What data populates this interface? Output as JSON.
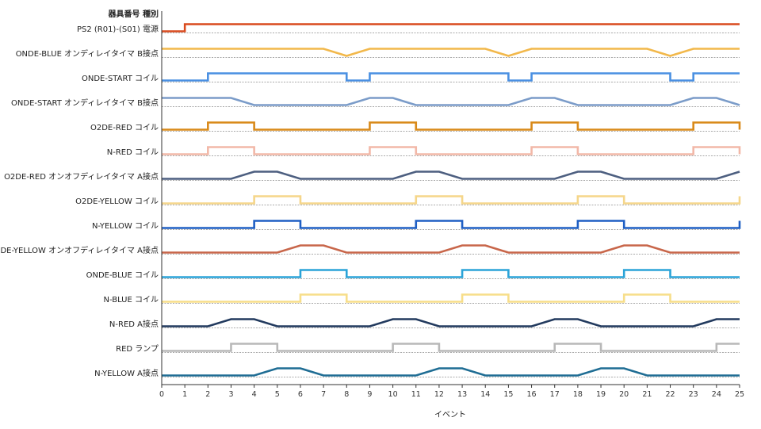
{
  "chart_data": {
    "type": "line",
    "header": "器具番号  種別",
    "xlabel": "イベント",
    "xlim": [
      0,
      25
    ],
    "xticks": [
      0,
      1,
      2,
      3,
      4,
      5,
      6,
      7,
      8,
      9,
      10,
      11,
      12,
      13,
      14,
      15,
      16,
      17,
      18,
      19,
      20,
      21,
      22,
      23,
      24,
      25
    ],
    "series": [
      {
        "name": "PS2 (R01)-(S01)  電源",
        "color": "#d94a1e",
        "step": true,
        "points": [
          [
            0,
            0
          ],
          [
            1,
            0
          ],
          [
            1,
            1
          ],
          [
            25,
            1
          ]
        ]
      },
      {
        "name": "ONDE-BLUE  オンディレイタイマ B接点",
        "color": "#f2b84b",
        "step": false,
        "points": [
          [
            0,
            1
          ],
          [
            7,
            1
          ],
          [
            8,
            0
          ],
          [
            9,
            1
          ],
          [
            14,
            1
          ],
          [
            15,
            0
          ],
          [
            16,
            1
          ],
          [
            21,
            1
          ],
          [
            22,
            0
          ],
          [
            23,
            1
          ],
          [
            25,
            1
          ]
        ]
      },
      {
        "name": "ONDE-START  コイル",
        "color": "#4a90e2",
        "step": true,
        "points": [
          [
            0,
            0
          ],
          [
            2,
            0
          ],
          [
            2,
            1
          ],
          [
            8,
            1
          ],
          [
            8,
            0
          ],
          [
            9,
            0
          ],
          [
            9,
            1
          ],
          [
            15,
            1
          ],
          [
            15,
            0
          ],
          [
            16,
            0
          ],
          [
            16,
            1
          ],
          [
            22,
            1
          ],
          [
            22,
            0
          ],
          [
            23,
            0
          ],
          [
            23,
            1
          ],
          [
            25,
            1
          ]
        ]
      },
      {
        "name": "ONDE-START  オンディレイタイマ B接点",
        "color": "#7b9cc9",
        "step": false,
        "points": [
          [
            0,
            1
          ],
          [
            3,
            1
          ],
          [
            4,
            0
          ],
          [
            8,
            0
          ],
          [
            9,
            1
          ],
          [
            10,
            1
          ],
          [
            11,
            0
          ],
          [
            15,
            0
          ],
          [
            16,
            1
          ],
          [
            17,
            1
          ],
          [
            18,
            0
          ],
          [
            22,
            0
          ],
          [
            23,
            1
          ],
          [
            24,
            1
          ],
          [
            25,
            0
          ]
        ]
      },
      {
        "name": "O2DE-RED  コイル",
        "color": "#d98a1a",
        "step": true,
        "points": [
          [
            0,
            0
          ],
          [
            2,
            0
          ],
          [
            2,
            1
          ],
          [
            4,
            1
          ],
          [
            4,
            0
          ],
          [
            9,
            0
          ],
          [
            9,
            1
          ],
          [
            11,
            1
          ],
          [
            11,
            0
          ],
          [
            16,
            0
          ],
          [
            16,
            1
          ],
          [
            18,
            1
          ],
          [
            18,
            0
          ],
          [
            23,
            0
          ],
          [
            23,
            1
          ],
          [
            25,
            1
          ],
          [
            25,
            0
          ]
        ]
      },
      {
        "name": "N-RED  コイル",
        "color": "#f2b8a8",
        "step": true,
        "points": [
          [
            0,
            0
          ],
          [
            2,
            0
          ],
          [
            2,
            1
          ],
          [
            4,
            1
          ],
          [
            4,
            0
          ],
          [
            9,
            0
          ],
          [
            9,
            1
          ],
          [
            11,
            1
          ],
          [
            11,
            0
          ],
          [
            16,
            0
          ],
          [
            16,
            1
          ],
          [
            18,
            1
          ],
          [
            18,
            0
          ],
          [
            23,
            0
          ],
          [
            23,
            1
          ],
          [
            25,
            1
          ],
          [
            25,
            0
          ]
        ]
      },
      {
        "name": "O2DE-RED  オンオフディレイタイマ A接点",
        "color": "#4d5f80",
        "step": false,
        "points": [
          [
            0,
            0
          ],
          [
            3,
            0
          ],
          [
            4,
            1
          ],
          [
            5,
            1
          ],
          [
            6,
            0
          ],
          [
            10,
            0
          ],
          [
            11,
            1
          ],
          [
            12,
            1
          ],
          [
            13,
            0
          ],
          [
            17,
            0
          ],
          [
            18,
            1
          ],
          [
            19,
            1
          ],
          [
            20,
            0
          ],
          [
            24,
            0
          ],
          [
            25,
            1
          ]
        ]
      },
      {
        "name": "O2DE-YELLOW  コイル",
        "color": "#f5d68a",
        "step": true,
        "points": [
          [
            0,
            0
          ],
          [
            4,
            0
          ],
          [
            4,
            1
          ],
          [
            6,
            1
          ],
          [
            6,
            0
          ],
          [
            11,
            0
          ],
          [
            11,
            1
          ],
          [
            13,
            1
          ],
          [
            13,
            0
          ],
          [
            18,
            0
          ],
          [
            18,
            1
          ],
          [
            20,
            1
          ],
          [
            20,
            0
          ],
          [
            25,
            0
          ],
          [
            25,
            1
          ]
        ]
      },
      {
        "name": "N-YELLOW  コイル",
        "color": "#1f5fc4",
        "step": true,
        "points": [
          [
            0,
            0
          ],
          [
            4,
            0
          ],
          [
            4,
            1
          ],
          [
            6,
            1
          ],
          [
            6,
            0
          ],
          [
            11,
            0
          ],
          [
            11,
            1
          ],
          [
            13,
            1
          ],
          [
            13,
            0
          ],
          [
            18,
            0
          ],
          [
            18,
            1
          ],
          [
            20,
            1
          ],
          [
            20,
            0
          ],
          [
            25,
            0
          ],
          [
            25,
            1
          ]
        ]
      },
      {
        "name": "O2DE-YELLOW  オンオフディレイタイマ A接点",
        "color": "#c8664a",
        "step": false,
        "points": [
          [
            0,
            0
          ],
          [
            5,
            0
          ],
          [
            6,
            1
          ],
          [
            7,
            1
          ],
          [
            8,
            0
          ],
          [
            12,
            0
          ],
          [
            13,
            1
          ],
          [
            14,
            1
          ],
          [
            15,
            0
          ],
          [
            19,
            0
          ],
          [
            20,
            1
          ],
          [
            21,
            1
          ],
          [
            22,
            0
          ],
          [
            25,
            0
          ]
        ]
      },
      {
        "name": "ONDE-BLUE  コイル",
        "color": "#2aa3d8",
        "step": true,
        "points": [
          [
            0,
            0
          ],
          [
            6,
            0
          ],
          [
            6,
            1
          ],
          [
            8,
            1
          ],
          [
            8,
            0
          ],
          [
            13,
            0
          ],
          [
            13,
            1
          ],
          [
            15,
            1
          ],
          [
            15,
            0
          ],
          [
            20,
            0
          ],
          [
            20,
            1
          ],
          [
            22,
            1
          ],
          [
            22,
            0
          ],
          [
            25,
            0
          ]
        ]
      },
      {
        "name": "N-BLUE  コイル",
        "color": "#f7de8a",
        "step": true,
        "points": [
          [
            0,
            0
          ],
          [
            6,
            0
          ],
          [
            6,
            1
          ],
          [
            8,
            1
          ],
          [
            8,
            0
          ],
          [
            13,
            0
          ],
          [
            13,
            1
          ],
          [
            15,
            1
          ],
          [
            15,
            0
          ],
          [
            20,
            0
          ],
          [
            20,
            1
          ],
          [
            22,
            1
          ],
          [
            22,
            0
          ],
          [
            25,
            0
          ]
        ]
      },
      {
        "name": "N-RED  A接点",
        "color": "#223a5e",
        "step": false,
        "points": [
          [
            0,
            0
          ],
          [
            2,
            0
          ],
          [
            3,
            1
          ],
          [
            4,
            1
          ],
          [
            5,
            0
          ],
          [
            9,
            0
          ],
          [
            10,
            1
          ],
          [
            11,
            1
          ],
          [
            12,
            0
          ],
          [
            16,
            0
          ],
          [
            17,
            1
          ],
          [
            18,
            1
          ],
          [
            19,
            0
          ],
          [
            23,
            0
          ],
          [
            24,
            1
          ],
          [
            25,
            1
          ]
        ]
      },
      {
        "name": "RED  ランプ",
        "color": "#b8b8b8",
        "step": true,
        "points": [
          [
            0,
            0
          ],
          [
            3,
            0
          ],
          [
            3,
            1
          ],
          [
            5,
            1
          ],
          [
            5,
            0
          ],
          [
            10,
            0
          ],
          [
            10,
            1
          ],
          [
            12,
            1
          ],
          [
            12,
            0
          ],
          [
            17,
            0
          ],
          [
            17,
            1
          ],
          [
            19,
            1
          ],
          [
            19,
            0
          ],
          [
            24,
            0
          ],
          [
            24,
            1
          ],
          [
            25,
            1
          ]
        ]
      },
      {
        "name": "N-YELLOW  A接点",
        "color": "#1f6d94",
        "step": false,
        "points": [
          [
            0,
            0
          ],
          [
            4,
            0
          ],
          [
            5,
            1
          ],
          [
            6,
            1
          ],
          [
            7,
            0
          ],
          [
            11,
            0
          ],
          [
            12,
            1
          ],
          [
            13,
            1
          ],
          [
            14,
            0
          ],
          [
            18,
            0
          ],
          [
            19,
            1
          ],
          [
            20,
            1
          ],
          [
            21,
            0
          ],
          [
            25,
            0
          ]
        ]
      }
    ]
  }
}
